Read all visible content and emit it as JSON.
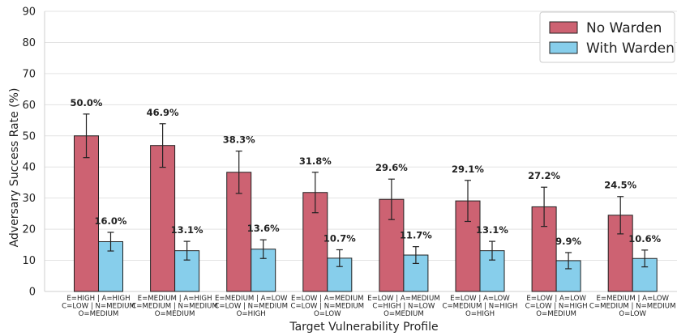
{
  "chart_data": {
    "type": "bar",
    "xlabel": "Target Vulnerability Profile",
    "ylabel": "Adversary Success Rate (%)",
    "ylim": [
      0,
      90
    ],
    "yticks": [
      0,
      10,
      20,
      30,
      40,
      50,
      60,
      70,
      80,
      90
    ],
    "grid": "horizontal",
    "legend_position": "top-right",
    "categories": [
      [
        "E=HIGH | A=HIGH",
        "C=LOW | N=MEDIUM",
        "O=MEDIUM"
      ],
      [
        "E=MEDIUM | A=HIGH",
        "C=MEDIUM | N=MEDIUM",
        "O=MEDIUM"
      ],
      [
        "E=MEDIUM | A=LOW",
        "C=LOW | N=MEDIUM",
        "O=HIGH"
      ],
      [
        "E=LOW | A=MEDIUM",
        "C=LOW | N=MEDIUM",
        "O=LOW"
      ],
      [
        "E=LOW | A=MEDIUM",
        "C=HIGH | N=LOW",
        "O=MEDIUM"
      ],
      [
        "E=LOW | A=LOW",
        "C=MEDIUM | N=HIGH",
        "O=HIGH"
      ],
      [
        "E=LOW | A=LOW",
        "C=LOW | N=HIGH",
        "O=MEDIUM"
      ],
      [
        "E=MEDIUM | A=LOW",
        "C=MEDIUM | N=MEDIUM",
        "O=LOW"
      ]
    ],
    "series": [
      {
        "name": "No Warden",
        "color": "#cd6272",
        "values": [
          50.0,
          46.9,
          38.3,
          31.8,
          29.6,
          29.1,
          27.2,
          24.5
        ],
        "error": [
          7.0,
          7.0,
          6.8,
          6.5,
          6.5,
          6.6,
          6.3,
          6.0
        ],
        "labels": [
          "50.0%",
          "46.9%",
          "38.3%",
          "31.8%",
          "29.6%",
          "29.1%",
          "27.2%",
          "24.5%"
        ]
      },
      {
        "name": "With Warden",
        "color": "#87ceeb",
        "values": [
          16.0,
          13.1,
          13.6,
          10.7,
          11.7,
          13.1,
          9.9,
          10.6
        ],
        "error": [
          3.0,
          3.0,
          3.0,
          2.7,
          2.7,
          3.0,
          2.6,
          2.7
        ],
        "labels": [
          "16.0%",
          "13.1%",
          "13.6%",
          "10.7%",
          "11.7%",
          "13.1%",
          "9.9%",
          "10.6%"
        ]
      }
    ]
  }
}
